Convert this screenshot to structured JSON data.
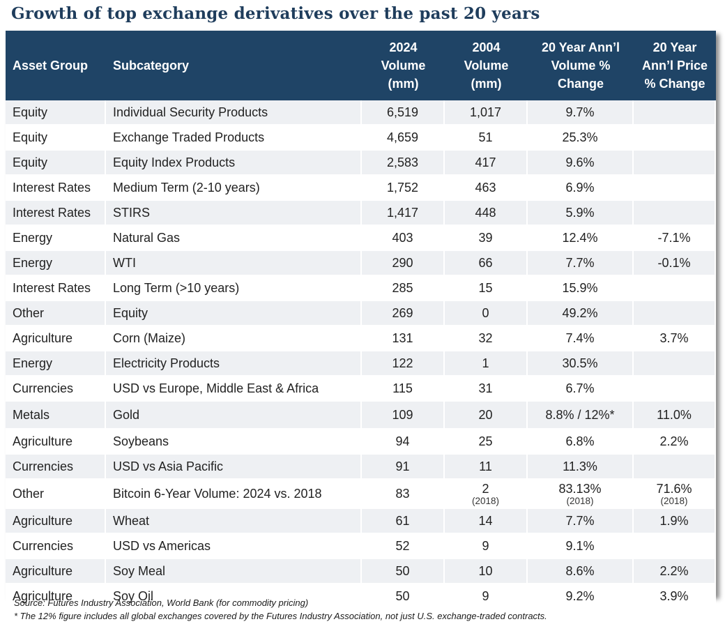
{
  "title": "Growth of top exchange derivatives over the past 20 years",
  "chart_data": {
    "type": "table",
    "columns": [
      {
        "lines": [
          "Asset Group"
        ]
      },
      {
        "lines": [
          "Subcategory"
        ]
      },
      {
        "lines": [
          "2024",
          "Volume",
          "(mm)"
        ]
      },
      {
        "lines": [
          "2004",
          "Volume",
          "(mm)"
        ]
      },
      {
        "lines": [
          "20 Year Ann’l",
          "Volume %",
          "Change"
        ]
      },
      {
        "lines": [
          "20 Year",
          "Ann’l Price",
          "% Change"
        ]
      }
    ],
    "rows": [
      {
        "group": "Equity",
        "sub": "Individual Security Products",
        "v2024": "6,519",
        "v2004": "1,017",
        "vol": "9.7%",
        "price": ""
      },
      {
        "group": "Equity",
        "sub": "Exchange Traded Products",
        "v2024": "4,659",
        "v2004": "51",
        "vol": "25.3%",
        "price": ""
      },
      {
        "group": "Equity",
        "sub": "Equity Index Products",
        "v2024": "2,583",
        "v2004": "417",
        "vol": "9.6%",
        "price": ""
      },
      {
        "group": "Interest Rates",
        "sub": "Medium Term (2-10 years)",
        "v2024": "1,752",
        "v2004": "463",
        "vol": "6.9%",
        "price": ""
      },
      {
        "group": "Interest Rates",
        "sub": "STIRS",
        "v2024": "1,417",
        "v2004": "448",
        "vol": "5.9%",
        "price": ""
      },
      {
        "group": "Energy",
        "sub": "Natural Gas",
        "v2024": "403",
        "v2004": "39",
        "vol": "12.4%",
        "price": "-7.1%"
      },
      {
        "group": "Energy",
        "sub": "WTI",
        "v2024": "290",
        "v2004": "66",
        "vol": "7.7%",
        "price": "-0.1%"
      },
      {
        "group": "Interest Rates",
        "sub": "Long Term (>10 years)",
        "v2024": "285",
        "v2004": "15",
        "vol": "15.9%",
        "price": ""
      },
      {
        "group": "Other",
        "sub": "Equity",
        "v2024": "269",
        "v2004": "0",
        "vol": "49.2%",
        "price": ""
      },
      {
        "group": "Agriculture",
        "sub": "Corn (Maize)",
        "v2024": "131",
        "v2004": "32",
        "vol": "7.4%",
        "price": "3.7%"
      },
      {
        "group": "Energy",
        "sub": "Electricity Products",
        "v2024": "122",
        "v2004": "1",
        "vol": "30.5%",
        "price": ""
      },
      {
        "group": "Currencies",
        "sub": "USD vs Europe, Middle East & Africa",
        "v2024": "115",
        "v2004": "31",
        "vol": "6.7%",
        "price": ""
      },
      {
        "group": "Metals",
        "sub": "Gold",
        "v2024": "109",
        "v2004": "20",
        "vol": "8.8% / 12%*",
        "price": "11.0%"
      },
      {
        "group": "Agriculture",
        "sub": "Soybeans",
        "v2024": "94",
        "v2004": "25",
        "vol": "6.8%",
        "price": "2.2%"
      },
      {
        "group": "Currencies",
        "sub": "USD vs Asia Pacific",
        "v2024": "91",
        "v2004": "11",
        "vol": "11.3%",
        "price": ""
      },
      {
        "group": "Other",
        "sub": "Bitcoin 6-Year Volume: 2024 vs. 2018",
        "v2024": "83",
        "v2004": "2",
        "v2004_note": "(2018)",
        "vol": "83.13%",
        "vol_note": "(2018)",
        "price": "71.6%",
        "price_note": "(2018)"
      },
      {
        "group": "Agriculture",
        "sub": "Wheat",
        "v2024": "61",
        "v2004": "14",
        "vol": "7.7%",
        "price": "1.9%"
      },
      {
        "group": "Currencies",
        "sub": "USD vs Americas",
        "v2024": "52",
        "v2004": "9",
        "vol": "9.1%",
        "price": ""
      },
      {
        "group": "Agriculture",
        "sub": "Soy Meal",
        "v2024": "50",
        "v2004": "10",
        "vol": "8.6%",
        "price": "2.2%"
      },
      {
        "group": "Agriculture",
        "sub": "Soy Oil",
        "v2024": "50",
        "v2004": "9",
        "vol": "9.2%",
        "price": "3.9%"
      }
    ]
  },
  "footer": {
    "source": "Source: Futures Industry Association,  World Bank (for commodity pricing)",
    "note": "* The 12% figure includes all global exchanges covered by the Futures Industry Association, not just U.S. exchange-traded contracts."
  }
}
